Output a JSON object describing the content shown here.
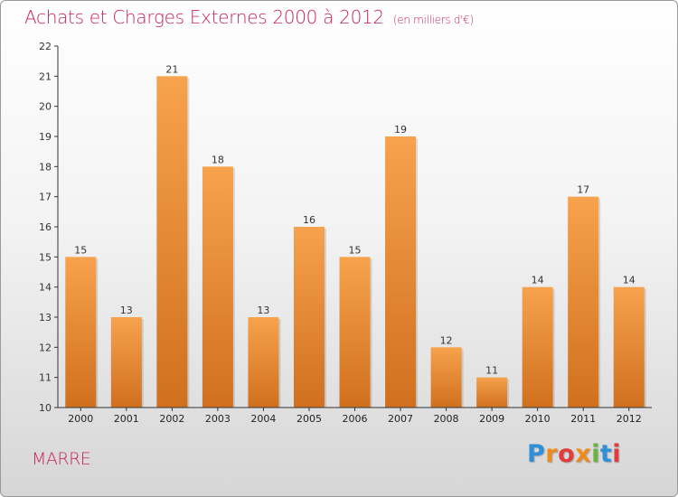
{
  "colors": {
    "title": "#c8245d",
    "bar_light": "#f7a24d",
    "bar_dark": "#d0701e",
    "axis": "#333333",
    "grid": "#e2e2e2"
  },
  "header": {
    "title": "Achats et Charges Externes 2000 à 2012",
    "subtitle": "(en milliers d'€)"
  },
  "footer": {
    "town": "MARRE",
    "logo": "Proxiti"
  },
  "chart_data": {
    "type": "bar",
    "title": "Achats et Charges Externes 2000 à 2012",
    "subtitle": "(en milliers d'€)",
    "xlabel": "",
    "ylabel": "",
    "categories": [
      "2000",
      "2001",
      "2002",
      "2003",
      "2004",
      "2005",
      "2006",
      "2007",
      "2008",
      "2009",
      "2010",
      "2011",
      "2012"
    ],
    "values": [
      15,
      13,
      21,
      18,
      13,
      16,
      15,
      19,
      12,
      11,
      14,
      17,
      14
    ],
    "ylim": [
      10,
      22
    ],
    "yticks": [
      "10",
      "11",
      "12",
      "13",
      "14",
      "15",
      "16",
      "17",
      "18",
      "19",
      "20",
      "21",
      "22"
    ],
    "grid": false,
    "legend": "none",
    "data_labels": true
  }
}
